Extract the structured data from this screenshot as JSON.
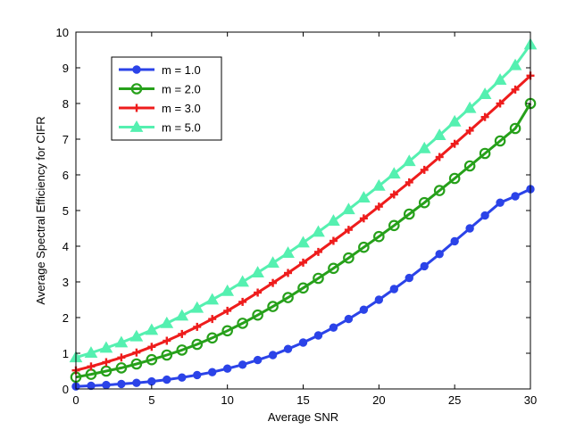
{
  "chart_data": {
    "type": "line",
    "title": "",
    "xlabel": "Average SNR",
    "ylabel": "Average Spectral Efficiency for CIFR",
    "xlim": [
      0,
      30
    ],
    "ylim": [
      0,
      10
    ],
    "xticks": [
      0,
      5,
      10,
      15,
      20,
      25,
      30
    ],
    "yticks": [
      0,
      1,
      2,
      3,
      4,
      5,
      6,
      7,
      8,
      9,
      10
    ],
    "grid": false,
    "legend_position": "top-left",
    "x": [
      0,
      1,
      2,
      3,
      4,
      5,
      6,
      7,
      8,
      9,
      10,
      11,
      12,
      13,
      14,
      15,
      16,
      17,
      18,
      19,
      20,
      21,
      22,
      23,
      24,
      25,
      26,
      27,
      28,
      29,
      30
    ],
    "series": [
      {
        "name": "m = 1.0",
        "color": "#2B43E8",
        "marker": "circle",
        "values": [
          0.07,
          0.09,
          0.11,
          0.14,
          0.17,
          0.21,
          0.26,
          0.32,
          0.39,
          0.47,
          0.57,
          0.68,
          0.81,
          0.95,
          1.12,
          1.3,
          1.5,
          1.72,
          1.96,
          2.22,
          2.5,
          2.8,
          3.11,
          3.44,
          3.78,
          4.14,
          4.5,
          4.86,
          5.22,
          5.4,
          5.6
        ]
      },
      {
        "name": "m = 2.0",
        "color": "#26A01A",
        "marker": "open-circle",
        "values": [
          0.33,
          0.41,
          0.5,
          0.59,
          0.7,
          0.82,
          0.95,
          1.09,
          1.25,
          1.43,
          1.63,
          1.84,
          2.07,
          2.31,
          2.56,
          2.83,
          3.1,
          3.38,
          3.67,
          3.97,
          4.27,
          4.58,
          4.9,
          5.22,
          5.56,
          5.9,
          6.25,
          6.6,
          6.95,
          7.3,
          8.0
        ]
      },
      {
        "name": "m = 3.0",
        "color": "#EE1C1C",
        "marker": "plus",
        "values": [
          0.52,
          0.63,
          0.75,
          0.88,
          1.02,
          1.18,
          1.35,
          1.54,
          1.74,
          1.96,
          2.19,
          2.44,
          2.7,
          2.97,
          3.25,
          3.54,
          3.84,
          4.15,
          4.46,
          4.78,
          5.11,
          5.45,
          5.79,
          6.14,
          6.5,
          6.87,
          7.24,
          7.62,
          8.0,
          8.39,
          8.78
        ]
      },
      {
        "name": "m = 5.0",
        "color": "#55F0B0",
        "marker": "triangle",
        "values": [
          0.88,
          1.01,
          1.15,
          1.3,
          1.47,
          1.65,
          1.84,
          2.05,
          2.27,
          2.5,
          2.74,
          3.0,
          3.26,
          3.53,
          3.81,
          4.1,
          4.4,
          4.71,
          5.03,
          5.36,
          5.69,
          6.03,
          6.38,
          6.74,
          7.11,
          7.49,
          7.87,
          8.26,
          8.66,
          9.07,
          9.65
        ]
      }
    ]
  }
}
